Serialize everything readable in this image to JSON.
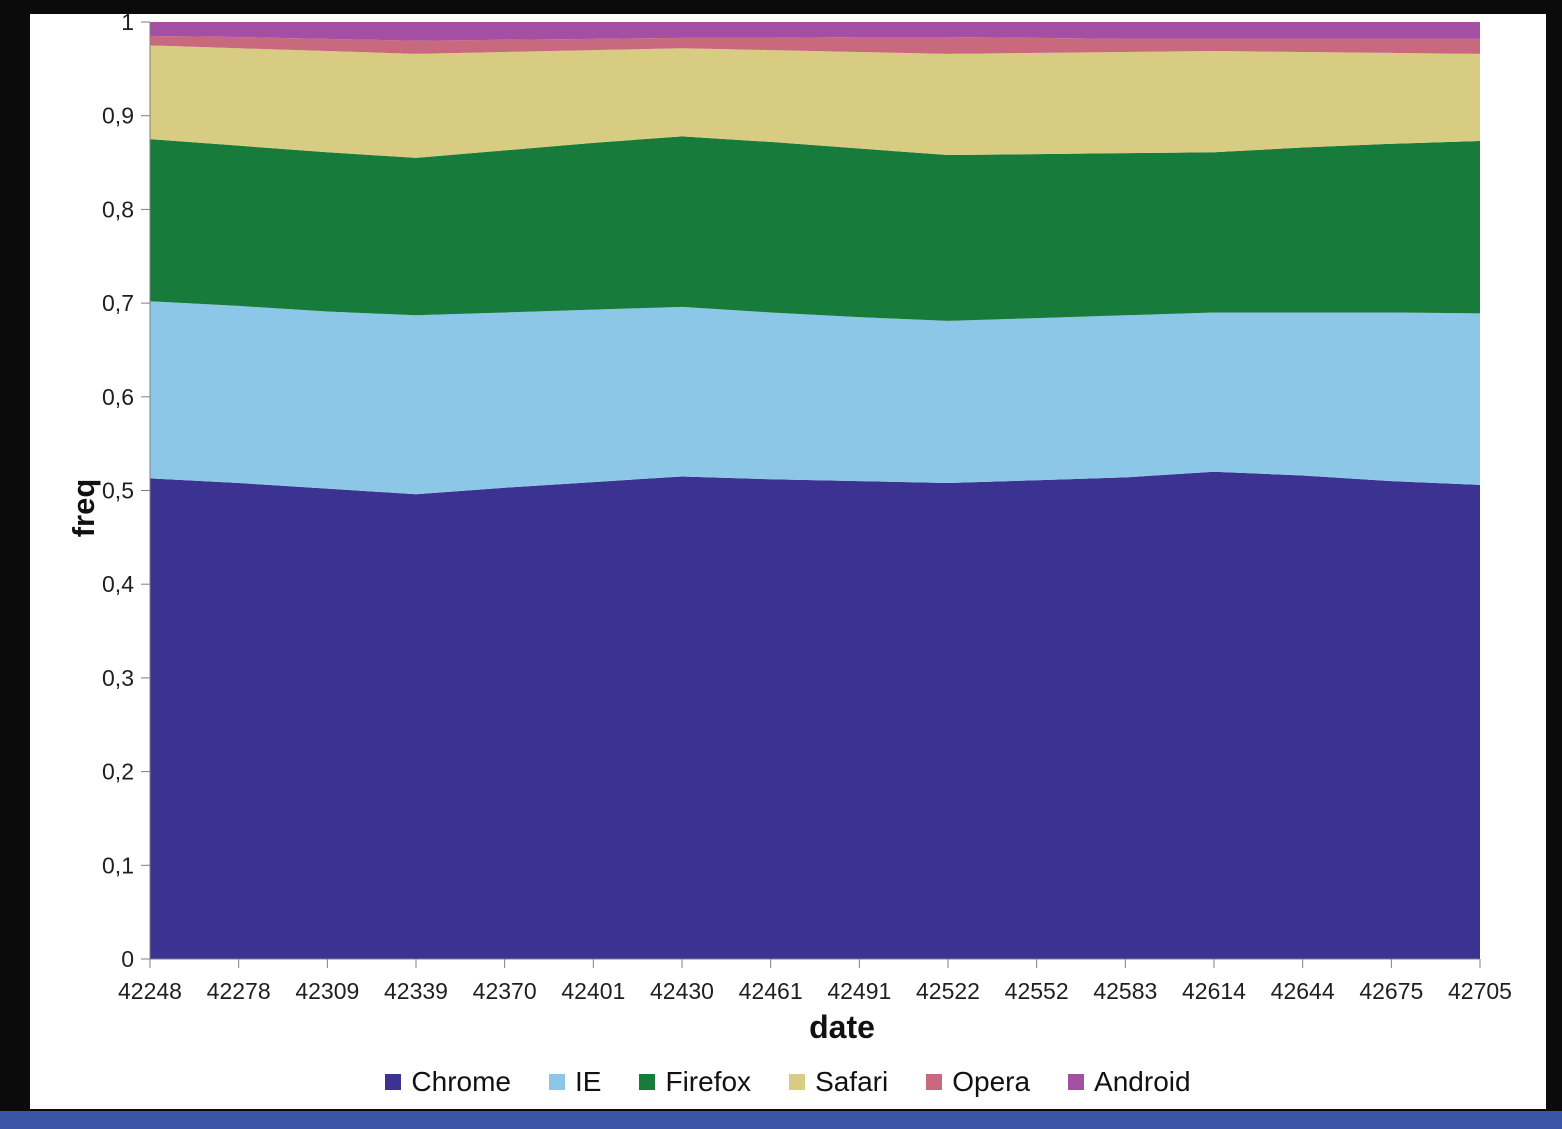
{
  "frame": {
    "border_color": "#0b0b0b",
    "bottom_bar_color": "#3a55a5",
    "background_color": "#ffffff"
  },
  "chart_data": {
    "type": "area",
    "stacked": true,
    "normalized": true,
    "title": "",
    "xlabel": "date",
    "ylabel": "freq",
    "ylim": [
      0,
      1
    ],
    "grid": false,
    "legend_position": "bottom",
    "y_ticks": [
      "0",
      "0,1",
      "0,2",
      "0,3",
      "0,4",
      "0,5",
      "0,6",
      "0,7",
      "0,8",
      "0,9",
      "1"
    ],
    "categories": [
      "42248",
      "42278",
      "42309",
      "42339",
      "42370",
      "42401",
      "42430",
      "42461",
      "42491",
      "42522",
      "42552",
      "42583",
      "42614",
      "42644",
      "42675",
      "42705"
    ],
    "series": [
      {
        "name": "Chrome",
        "color": "#3B3292",
        "values": [
          0.513,
          0.508,
          0.502,
          0.496,
          0.503,
          0.509,
          0.515,
          0.512,
          0.51,
          0.508,
          0.511,
          0.514,
          0.52,
          0.516,
          0.51,
          0.506
        ]
      },
      {
        "name": "IE",
        "color": "#8CC7E8",
        "values": [
          0.189,
          0.189,
          0.189,
          0.191,
          0.187,
          0.184,
          0.181,
          0.178,
          0.175,
          0.173,
          0.173,
          0.173,
          0.17,
          0.174,
          0.18,
          0.183
        ]
      },
      {
        "name": "Firefox",
        "color": "#177B3B",
        "values": [
          0.173,
          0.171,
          0.17,
          0.168,
          0.173,
          0.178,
          0.182,
          0.182,
          0.18,
          0.177,
          0.175,
          0.173,
          0.171,
          0.176,
          0.18,
          0.184
        ]
      },
      {
        "name": "Safari",
        "color": "#D8CB82",
        "values": [
          0.1,
          0.104,
          0.108,
          0.111,
          0.105,
          0.099,
          0.094,
          0.098,
          0.103,
          0.108,
          0.108,
          0.108,
          0.108,
          0.102,
          0.097,
          0.093
        ]
      },
      {
        "name": "Opera",
        "color": "#C9697E",
        "values": [
          0.01,
          0.012,
          0.013,
          0.014,
          0.013,
          0.012,
          0.011,
          0.013,
          0.016,
          0.018,
          0.016,
          0.014,
          0.013,
          0.014,
          0.015,
          0.016
        ]
      },
      {
        "name": "Android",
        "color": "#A44FA3",
        "values": [
          0.015,
          0.016,
          0.018,
          0.02,
          0.019,
          0.018,
          0.017,
          0.017,
          0.016,
          0.016,
          0.017,
          0.018,
          0.018,
          0.018,
          0.018,
          0.018
        ]
      }
    ]
  }
}
